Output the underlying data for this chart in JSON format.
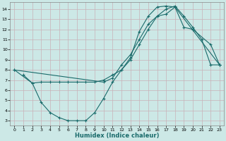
{
  "xlabel": "Humidex (Indice chaleur)",
  "bg_color": "#cce8e6",
  "grid_color": "#c8b0b8",
  "line_color": "#1a6b6b",
  "xlim": [
    -0.5,
    23.5
  ],
  "ylim": [
    2.5,
    14.7
  ],
  "xticks": [
    0,
    1,
    2,
    3,
    4,
    5,
    6,
    7,
    8,
    9,
    10,
    11,
    12,
    13,
    14,
    15,
    16,
    17,
    18,
    19,
    20,
    21,
    22,
    23
  ],
  "yticks": [
    3,
    4,
    5,
    6,
    7,
    8,
    9,
    10,
    11,
    12,
    13,
    14
  ],
  "line1_x": [
    1,
    2,
    3,
    4,
    5,
    6,
    7,
    8,
    9,
    10,
    11,
    12,
    13,
    14,
    15,
    16,
    17,
    18,
    23
  ],
  "line1_y": [
    7.5,
    6.7,
    6.8,
    6.8,
    6.8,
    6.8,
    6.8,
    6.8,
    6.8,
    7.0,
    7.5,
    8.0,
    9.2,
    11.8,
    13.3,
    14.2,
    14.3,
    14.2,
    8.5
  ],
  "line2_x": [
    0,
    2,
    3,
    4,
    5,
    6,
    7,
    8,
    9,
    10,
    11,
    12,
    13,
    14,
    15,
    16,
    17,
    18,
    19,
    20,
    22,
    23
  ],
  "line2_y": [
    8.0,
    6.7,
    4.8,
    3.8,
    3.3,
    3.0,
    3.0,
    3.0,
    3.8,
    5.2,
    6.8,
    8.0,
    9.0,
    10.5,
    12.0,
    13.3,
    13.5,
    14.2,
    12.2,
    12.0,
    10.5,
    8.5
  ],
  "line3_x": [
    0,
    10,
    11,
    12,
    13,
    14,
    15,
    16,
    17,
    18,
    19,
    20,
    21,
    22,
    23
  ],
  "line3_y": [
    8.0,
    6.8,
    7.2,
    8.5,
    9.5,
    11.0,
    12.5,
    13.3,
    14.0,
    14.3,
    13.3,
    12.2,
    11.0,
    8.5,
    8.5
  ]
}
